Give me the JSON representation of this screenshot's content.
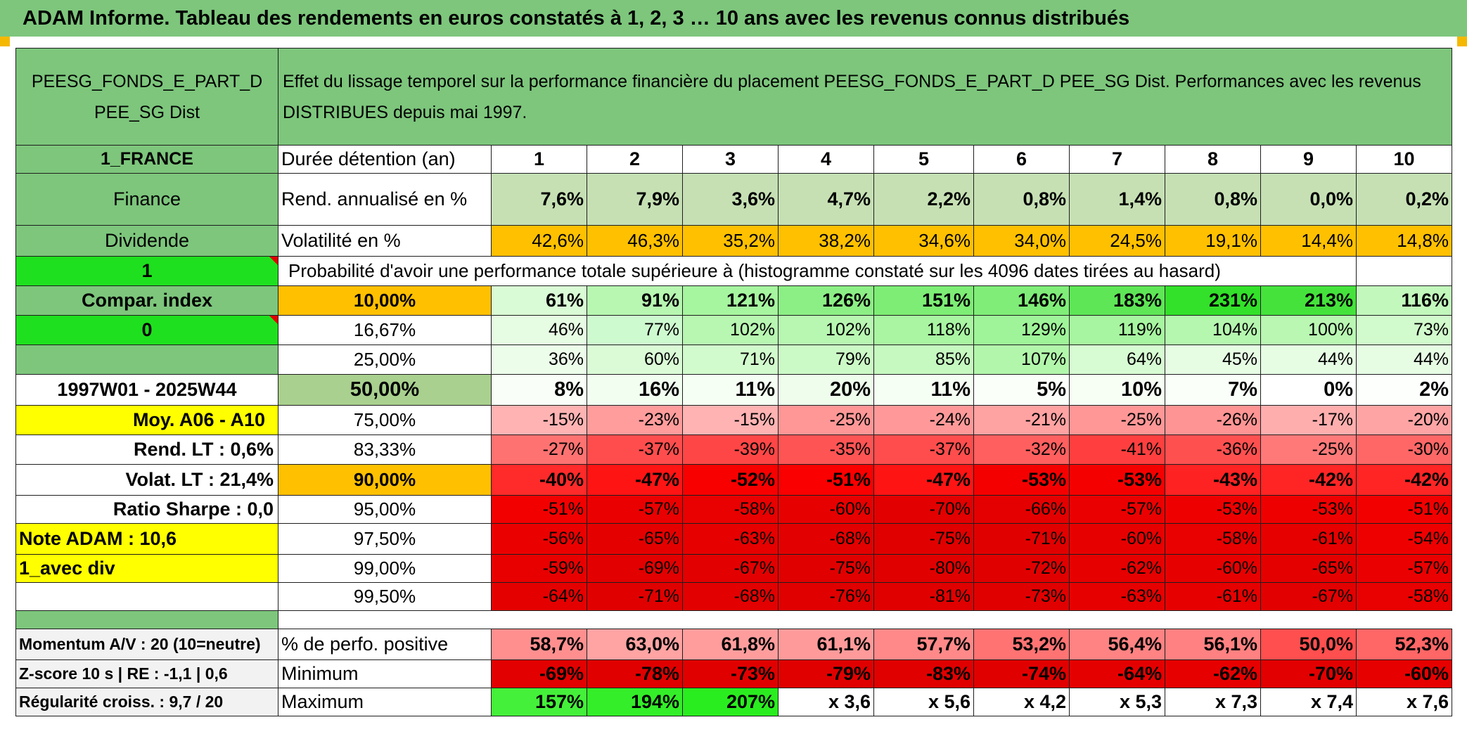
{
  "banner": "ADAM Informe. Tableau des rendements en euros constatés à 1, 2, 3 … 10 ans avec les revenus connus distribués",
  "fund": {
    "line1": "PEESG_FONDS_E_PART_D",
    "line2": "PEE_SG Dist"
  },
  "description": "Effet du lissage temporel sur la performance financière du placement PEESG_FONDS_E_PART_D PEE_SG Dist. Performances avec les revenus DISTRIBUES depuis mai 1997.",
  "left": {
    "country": "1_FRANCE",
    "sector": "Finance",
    "type": "Dividende",
    "flag1": "1",
    "compar": "Compar. index",
    "flag2": "0",
    "blank": "",
    "period": "1997W01 - 2025W44",
    "moy": "Moy. A06 - A10",
    "rend_lt": "Rend. LT :   0,6%",
    "volat_lt": "Volat. LT :   21,4%",
    "sharpe": "Ratio Sharpe :    0,0",
    "note": "Note ADAM : 10,6",
    "avec_div": "1_avec div",
    "momentum": "Momentum A/V : 20 (10=neutre)",
    "zscore": "Z-score 10 s | RE : -1,1 | 0,6",
    "regularite": "Régularité croiss. : 9,7 / 20"
  },
  "labels": {
    "duree": "Durée détention (an)",
    "rend": "Rend. annualisé en %",
    "vol": "Volatilité en %",
    "proba": "Probabilité d'avoir une performance totale supérieure à (histogramme constaté sur les 4096 dates tirées au hasard)",
    "positive": "% de perfo. positive",
    "minimum": "Minimum",
    "maximum": "Maximum"
  },
  "years": [
    "1",
    "2",
    "3",
    "4",
    "5",
    "6",
    "7",
    "8",
    "9",
    "10"
  ],
  "rend": [
    "7,6%",
    "7,9%",
    "3,6%",
    "4,7%",
    "2,2%",
    "0,8%",
    "1,4%",
    "0,8%",
    "0,0%",
    "0,2%"
  ],
  "vol": [
    "42,6%",
    "46,3%",
    "35,2%",
    "38,2%",
    "34,6%",
    "34,0%",
    "24,5%",
    "19,1%",
    "14,4%",
    "14,8%"
  ],
  "vol_colors": [
    "#ffc000",
    "#ffc000",
    "#ffc000",
    "#ffc000",
    "#ffc000",
    "#ffc000",
    "#ffc000",
    "#ffc000",
    "#ffc000",
    "#ffc000"
  ],
  "proba": [
    {
      "pct": "10,00%",
      "pct_bg": "#ffc000",
      "bold": true,
      "values": [
        "61%",
        "91%",
        "121%",
        "126%",
        "151%",
        "146%",
        "183%",
        "231%",
        "213%",
        "116%"
      ],
      "colors": [
        "#d9fbd5",
        "#b7f7b1",
        "#a6f59f",
        "#8cef85",
        "#7ded75",
        "#7fed78",
        "#5ee656",
        "#33e02a",
        "#45e23c",
        "#c2f8bc"
      ]
    },
    {
      "pct": "16,67%",
      "pct_bg": "#ffffff",
      "bold": false,
      "values": [
        "46%",
        "77%",
        "102%",
        "102%",
        "118%",
        "129%",
        "119%",
        "104%",
        "100%",
        "73%"
      ],
      "colors": [
        "#e6fde3",
        "#cefad0",
        "#b8f7b2",
        "#b8f7b2",
        "#a9f5a2",
        "#9ff499",
        "#a7f5a0",
        "#b5f7af",
        "#b9f7b3",
        "#d1fbcc"
      ]
    },
    {
      "pct": "25,00%",
      "pct_bg": "#ffffff",
      "bold": false,
      "values": [
        "36%",
        "60%",
        "71%",
        "79%",
        "85%",
        "107%",
        "64%",
        "45%",
        "44%",
        "44%"
      ],
      "colors": [
        "#ecfdea",
        "#dafbd6",
        "#d2fbcd",
        "#ccfac6",
        "#c6f9c0",
        "#b2f6ab",
        "#d7fbd2",
        "#e6fde4",
        "#e6fde4",
        "#e6fde4"
      ]
    },
    {
      "pct": "50,00%",
      "pct_bg": "#a9d08e",
      "bold": true,
      "values": [
        "8%",
        "16%",
        "11%",
        "20%",
        "11%",
        "5%",
        "10%",
        "7%",
        "0%",
        "2%"
      ],
      "colors": [
        "#f9fff8",
        "#f2fef0",
        "#f6fff4",
        "#eefdec",
        "#f6fff4",
        "#fbfffa",
        "#f7fff5",
        "#fafff9",
        "#ffffff",
        "#fdfffd"
      ]
    },
    {
      "pct": "75,00%",
      "pct_bg": "#ffffff",
      "bold": false,
      "values": [
        "-15%",
        "-23%",
        "-15%",
        "-25%",
        "-24%",
        "-21%",
        "-25%",
        "-26%",
        "-17%",
        "-20%"
      ],
      "colors": [
        "#ffb3b3",
        "#ff9c9c",
        "#ffb3b3",
        "#ff9797",
        "#ff9999",
        "#ffa2a2",
        "#ff9797",
        "#ff9494",
        "#ffaeae",
        "#ffa4a4"
      ]
    },
    {
      "pct": "83,33%",
      "pct_bg": "#ffffff",
      "bold": false,
      "values": [
        "-27%",
        "-37%",
        "-39%",
        "-35%",
        "-37%",
        "-32%",
        "-41%",
        "-36%",
        "-25%",
        "-30%"
      ],
      "colors": [
        "#ff7272",
        "#ff4d4d",
        "#ff4646",
        "#ff5454",
        "#ff4d4d",
        "#ff5f5f",
        "#ff3f3f",
        "#ff5050",
        "#ff7979",
        "#ff6767"
      ]
    },
    {
      "pct": "90,00%",
      "pct_bg": "#ffc000",
      "bold": true,
      "values": [
        "-40%",
        "-47%",
        "-52%",
        "-51%",
        "-47%",
        "-53%",
        "-53%",
        "-43%",
        "-42%",
        "-42%"
      ],
      "colors": [
        "#ff2a2a",
        "#ff1414",
        "#f80000",
        "#fa0000",
        "#ff1414",
        "#f50000",
        "#f50000",
        "#ff2222",
        "#ff2525",
        "#ff2525"
      ]
    },
    {
      "pct": "95,00%",
      "pct_bg": "#ffffff",
      "bold": false,
      "values": [
        "-51%",
        "-57%",
        "-58%",
        "-60%",
        "-70%",
        "-66%",
        "-57%",
        "-53%",
        "-53%",
        "-51%"
      ],
      "colors": [
        "#f20000",
        "#ea0000",
        "#e90000",
        "#e70000",
        "#e20000",
        "#e40000",
        "#ea0000",
        "#ef0000",
        "#ef0000",
        "#f20000"
      ]
    },
    {
      "pct": "97,50%",
      "pct_bg": "#ffffff",
      "bold": false,
      "values": [
        "-56%",
        "-65%",
        "-63%",
        "-68%",
        "-75%",
        "-71%",
        "-60%",
        "-58%",
        "-61%",
        "-54%"
      ],
      "colors": [
        "#eb0000",
        "#e50000",
        "#e60000",
        "#e30000",
        "#e00000",
        "#e10000",
        "#e70000",
        "#e90000",
        "#e60000",
        "#ee0000"
      ]
    },
    {
      "pct": "99,00%",
      "pct_bg": "#ffffff",
      "bold": false,
      "values": [
        "-59%",
        "-69%",
        "-67%",
        "-75%",
        "-80%",
        "-72%",
        "-62%",
        "-60%",
        "-65%",
        "-57%"
      ],
      "colors": [
        "#e80000",
        "#e20000",
        "#e30000",
        "#e00000",
        "#e00000",
        "#e10000",
        "#e60000",
        "#e70000",
        "#e50000",
        "#ea0000"
      ]
    },
    {
      "pct": "99,50%",
      "pct_bg": "#ffffff",
      "bold": false,
      "values": [
        "-64%",
        "-71%",
        "-68%",
        "-76%",
        "-81%",
        "-73%",
        "-63%",
        "-61%",
        "-67%",
        "-58%"
      ],
      "colors": [
        "#e50000",
        "#e10000",
        "#e30000",
        "#e00000",
        "#e00000",
        "#e10000",
        "#e60000",
        "#e60000",
        "#e30000",
        "#e90000"
      ]
    }
  ],
  "positive": [
    "58,7%",
    "63,0%",
    "61,8%",
    "61,1%",
    "57,7%",
    "53,2%",
    "56,4%",
    "56,1%",
    "50,0%",
    "52,3%"
  ],
  "positive_colors": [
    "#ff8f8f",
    "#ffa3a3",
    "#ff9d9d",
    "#ff9a9a",
    "#ff8989",
    "#ff7373",
    "#ff8383",
    "#ff8181",
    "#ff4f4f",
    "#ff6666"
  ],
  "minimum": [
    "-69%",
    "-78%",
    "-73%",
    "-79%",
    "-83%",
    "-74%",
    "-64%",
    "-62%",
    "-70%",
    "-60%"
  ],
  "minimum_colors": [
    "#e20000",
    "#e00000",
    "#e10000",
    "#e00000",
    "#e00000",
    "#e10000",
    "#e50000",
    "#e60000",
    "#e20000",
    "#e70000"
  ],
  "maximum": [
    "157%",
    "194%",
    "207%",
    "x 3,6",
    "x 5,6",
    "x 4,2",
    "x 5,3",
    "x 7,3",
    "x 7,4",
    "x 7,6"
  ],
  "maximum_colors": [
    "#44f03a",
    "#33ee28",
    "#2aed1f",
    "#ffffff",
    "#ffffff",
    "#ffffff",
    "#ffffff",
    "#ffffff",
    "#ffffff",
    "#ffffff"
  ]
}
